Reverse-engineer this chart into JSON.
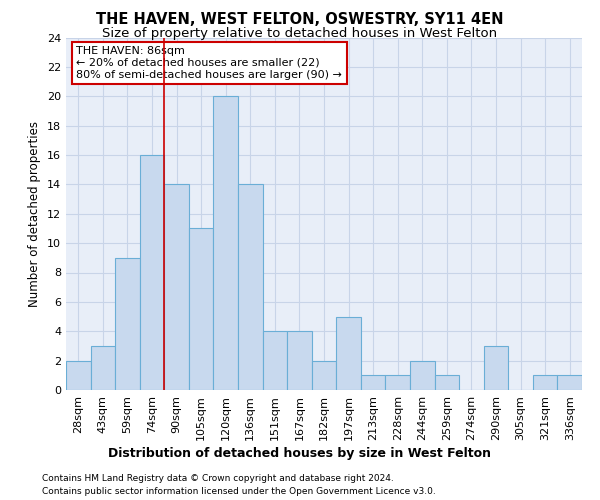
{
  "title": "THE HAVEN, WEST FELTON, OSWESTRY, SY11 4EN",
  "subtitle": "Size of property relative to detached houses in West Felton",
  "xlabel": "Distribution of detached houses by size in West Felton",
  "ylabel": "Number of detached properties",
  "footnote1": "Contains HM Land Registry data © Crown copyright and database right 2024.",
  "footnote2": "Contains public sector information licensed under the Open Government Licence v3.0.",
  "categories": [
    "28sqm",
    "43sqm",
    "59sqm",
    "74sqm",
    "90sqm",
    "105sqm",
    "120sqm",
    "136sqm",
    "151sqm",
    "167sqm",
    "182sqm",
    "197sqm",
    "213sqm",
    "228sqm",
    "244sqm",
    "259sqm",
    "274sqm",
    "290sqm",
    "305sqm",
    "321sqm",
    "336sqm"
  ],
  "values": [
    2,
    3,
    9,
    16,
    14,
    11,
    20,
    14,
    4,
    4,
    2,
    5,
    1,
    1,
    2,
    1,
    0,
    3,
    0,
    1,
    1
  ],
  "bar_color": "#c8d9ee",
  "bar_edge_color": "#6aaed6",
  "red_line_x": 3.5,
  "annotation_line1": "THE HAVEN: 86sqm",
  "annotation_line2": "← 20% of detached houses are smaller (22)",
  "annotation_line3": "80% of semi-detached houses are larger (90) →",
  "annotation_box_color": "#ffffff",
  "annotation_box_edge_color": "#cc0000",
  "ylim": [
    0,
    24
  ],
  "yticks": [
    0,
    2,
    4,
    6,
    8,
    10,
    12,
    14,
    16,
    18,
    20,
    22,
    24
  ],
  "grid_color": "#c8d4e8",
  "bg_color": "#e8eef8",
  "title_fontsize": 10.5,
  "subtitle_fontsize": 9.5,
  "tick_fontsize": 8,
  "ylabel_fontsize": 8.5,
  "xlabel_fontsize": 9,
  "footnote_fontsize": 6.5,
  "annotation_fontsize": 8
}
